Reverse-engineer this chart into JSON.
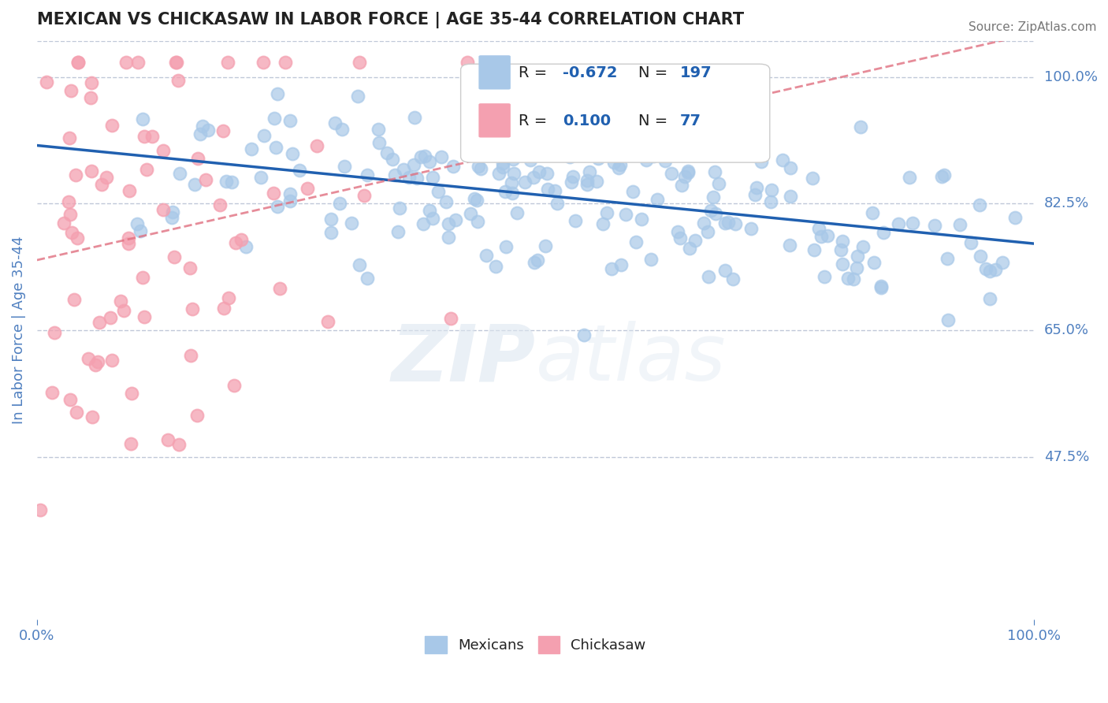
{
  "title": "MEXICAN VS CHICKASAW IN LABOR FORCE | AGE 35-44 CORRELATION CHART",
  "source": "Source: ZipAtlas.com",
  "ylabel": "In Labor Force | Age 35-44",
  "xlim": [
    0.0,
    1.0
  ],
  "ylim": [
    0.25,
    1.05
  ],
  "yticks": [
    0.475,
    0.65,
    0.825,
    1.0
  ],
  "ytick_labels": [
    "47.5%",
    "65.0%",
    "82.5%",
    "100.0%"
  ],
  "blue_R": -0.672,
  "blue_N": 197,
  "pink_R": 0.1,
  "pink_N": 77,
  "blue_color": "#a8c8e8",
  "pink_color": "#f4a0b0",
  "blue_line_color": "#2060b0",
  "pink_line_color": "#e07080",
  "axis_color": "#5080c0",
  "legend_R_color": "#2060b0",
  "watermark_zip": "ZIP",
  "watermark_atlas": "atlas",
  "grid_color": "#c0c8d8",
  "background_color": "#ffffff"
}
